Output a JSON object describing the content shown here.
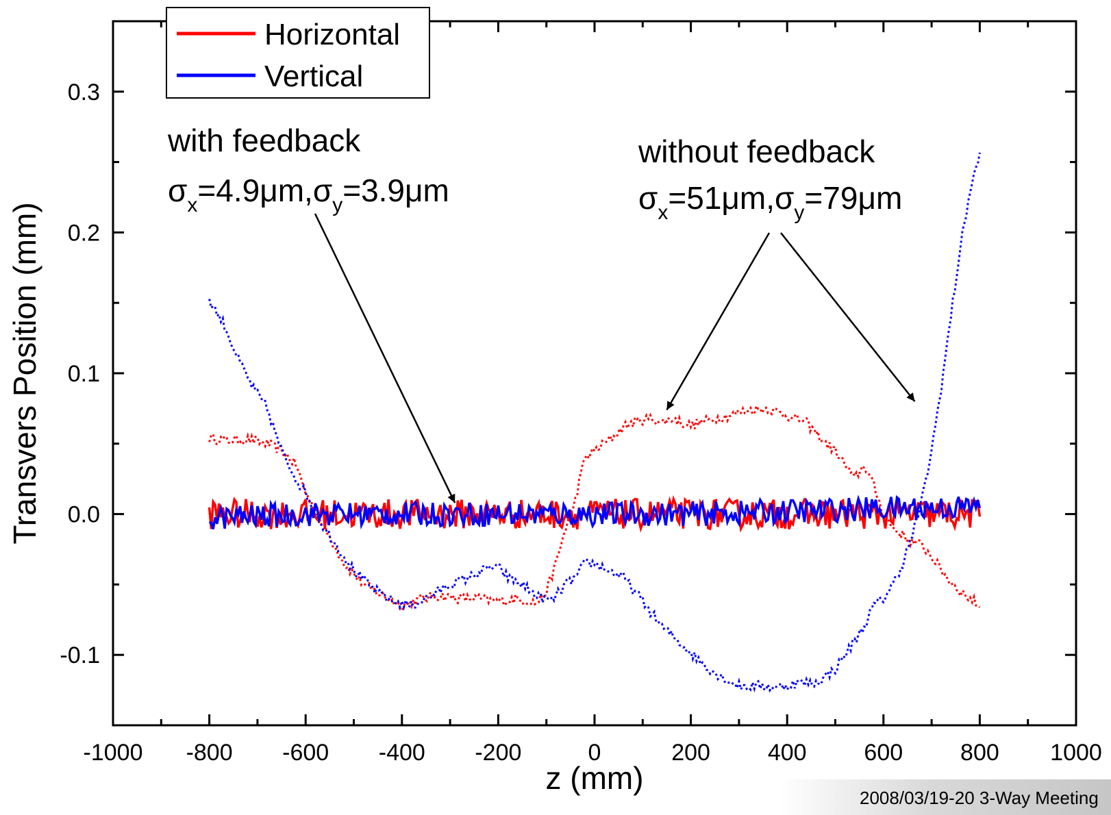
{
  "chart_data": {
    "type": "line",
    "xlabel": "z (mm)",
    "ylabel": "Transvers Position (mm)",
    "xlim": [
      -1000,
      1000
    ],
    "ylim": [
      -0.15,
      0.35
    ],
    "xticks": [
      -1000,
      -800,
      -600,
      -400,
      -200,
      0,
      200,
      400,
      600,
      800,
      1000
    ],
    "xtick_labels": [
      "-1000",
      "-800",
      "-600",
      "-400",
      "-200",
      "0",
      "200",
      "400",
      "600",
      "800",
      "1000"
    ],
    "yticks": [
      -0.1,
      0.0,
      0.1,
      0.2,
      0.3
    ],
    "ytick_labels": [
      "-0.1",
      "0.0",
      "0.1",
      "0.2",
      "0.3"
    ],
    "grid": false,
    "legend_position": "top-left",
    "legend": [
      {
        "name": "Horizontal",
        "color": "#ff0000"
      },
      {
        "name": "Vertical",
        "color": "#0000ff"
      }
    ],
    "series": [
      {
        "name": "Horizontal",
        "condition": "with feedback",
        "style": "solid",
        "color": "#ff0000",
        "rms_um": 4.9,
        "x": [
          -800,
          -600,
          -400,
          -200,
          0,
          200,
          400,
          600,
          800
        ],
        "y": [
          0.0,
          0.0,
          0.0,
          0.0,
          0.0,
          0.0,
          0.0,
          0.0,
          0.0
        ]
      },
      {
        "name": "Vertical",
        "condition": "with feedback",
        "style": "solid",
        "color": "#0000ff",
        "rms_um": 3.9,
        "x": [
          -800,
          -600,
          -400,
          -200,
          0,
          200,
          400,
          600,
          800
        ],
        "y": [
          -0.003,
          0.0,
          0.0,
          0.0,
          0.0,
          0.0,
          0.002,
          0.004,
          0.005
        ]
      },
      {
        "name": "Horizontal",
        "condition": "without feedback",
        "style": "dotted",
        "color": "#ff0000",
        "rms_um": 51,
        "x": [
          -800,
          -760,
          -720,
          -680,
          -650,
          -620,
          -600,
          -560,
          -520,
          -480,
          -440,
          -400,
          -360,
          -320,
          -280,
          -240,
          -200,
          -160,
          -120,
          -100,
          -80,
          -60,
          -40,
          -20,
          0,
          20,
          40,
          60,
          80,
          100,
          120,
          140,
          160,
          180,
          200,
          240,
          280,
          320,
          360,
          400,
          440,
          480,
          500,
          520,
          540,
          560,
          580,
          600,
          620,
          640,
          660,
          680,
          700,
          720,
          740,
          760,
          780,
          800
        ],
        "y": [
          0.054,
          0.052,
          0.053,
          0.05,
          0.045,
          0.035,
          0.015,
          -0.01,
          -0.035,
          -0.05,
          -0.058,
          -0.065,
          -0.06,
          -0.058,
          -0.06,
          -0.06,
          -0.062,
          -0.06,
          -0.063,
          -0.055,
          -0.035,
          -0.01,
          0.01,
          0.04,
          0.045,
          0.05,
          0.055,
          0.062,
          0.065,
          0.067,
          0.068,
          0.065,
          0.068,
          0.065,
          0.063,
          0.067,
          0.07,
          0.074,
          0.075,
          0.07,
          0.065,
          0.05,
          0.045,
          0.035,
          0.025,
          0.035,
          0.02,
          0.0,
          -0.01,
          -0.015,
          -0.02,
          -0.022,
          -0.03,
          -0.04,
          -0.048,
          -0.055,
          -0.06,
          -0.065
        ]
      },
      {
        "name": "Vertical",
        "condition": "without feedback",
        "style": "dotted",
        "color": "#0000ff",
        "rms_um": 79,
        "x": [
          -800,
          -770,
          -740,
          -710,
          -680,
          -650,
          -620,
          -600,
          -570,
          -540,
          -500,
          -460,
          -420,
          -380,
          -340,
          -300,
          -260,
          -220,
          -200,
          -180,
          -150,
          -120,
          -90,
          -60,
          -40,
          -20,
          0,
          30,
          60,
          100,
          140,
          180,
          220,
          260,
          300,
          340,
          380,
          420,
          460,
          500,
          530,
          560,
          580,
          600,
          620,
          640,
          660,
          680,
          700,
          720,
          740,
          760,
          780,
          800
        ],
        "y": [
          0.152,
          0.135,
          0.11,
          0.09,
          0.075,
          0.045,
          0.025,
          0.015,
          -0.005,
          -0.02,
          -0.04,
          -0.053,
          -0.062,
          -0.065,
          -0.058,
          -0.05,
          -0.045,
          -0.038,
          -0.038,
          -0.045,
          -0.05,
          -0.058,
          -0.062,
          -0.05,
          -0.045,
          -0.035,
          -0.035,
          -0.04,
          -0.045,
          -0.062,
          -0.08,
          -0.092,
          -0.105,
          -0.115,
          -0.122,
          -0.122,
          -0.123,
          -0.12,
          -0.12,
          -0.11,
          -0.095,
          -0.08,
          -0.065,
          -0.06,
          -0.05,
          -0.035,
          -0.015,
          0.01,
          0.045,
          0.09,
          0.14,
          0.19,
          0.23,
          0.255
        ]
      }
    ],
    "annotations": {
      "with_feedback": {
        "line1": "with feedback",
        "sigma": "σ",
        "sub_x": "x",
        "eq_x": "=4.9μm,",
        "sub_y": "y",
        "eq_y": "=3.9μm",
        "arrow_target": {
          "x": -290,
          "y": 0.008
        }
      },
      "without_feedback": {
        "line1": "without feedback",
        "sigma": "σ",
        "sub_x": "x",
        "eq_x": "=51μm,",
        "sub_y": "y",
        "eq_y": "=79μm",
        "arrow_targets": [
          {
            "x": 150,
            "y": 0.074
          },
          {
            "x": 665,
            "y": 0.08
          }
        ]
      }
    }
  },
  "footer": {
    "text": "2008/03/19-20 3-Way Meeting"
  }
}
